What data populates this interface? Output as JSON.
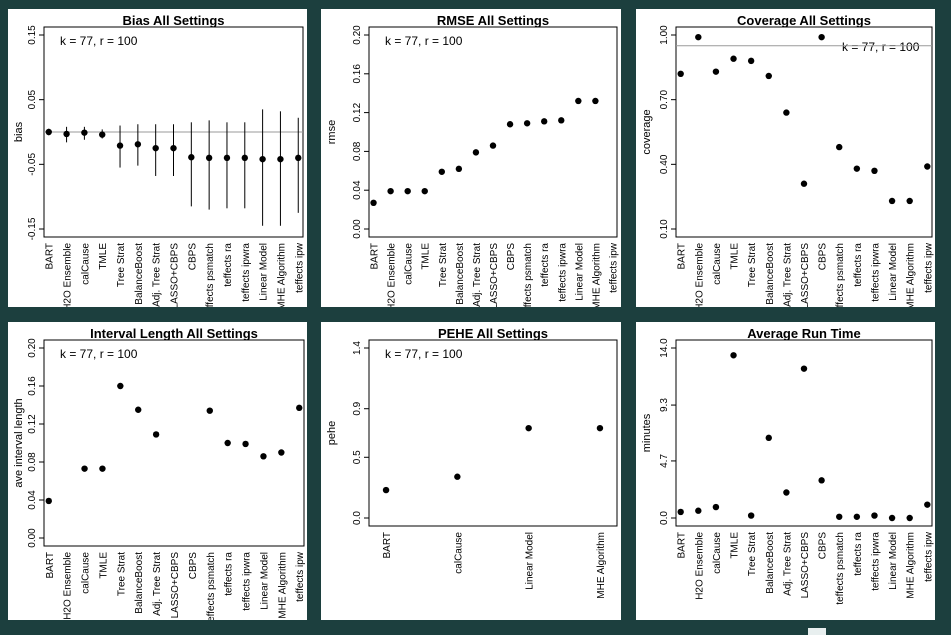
{
  "chart_data": [
    {
      "type": "scatter",
      "title": "Bias All Settings",
      "annotation": "k = 77, r = 100",
      "ylabel": "bias",
      "ylim": [
        -0.15,
        0.15
      ],
      "yticks": [
        0.15,
        0.05,
        -0.05,
        -0.15
      ],
      "ytick_labels": [
        "0.15",
        "0.05",
        "-0.05",
        "-0.15"
      ],
      "hline": 0,
      "categories": [
        "BART",
        "H2O Ensemble",
        "calCause",
        "TMLE",
        "Tree Strat",
        "BalanceBoost",
        "Adj. Tree Strat",
        "LASSO+CBPS",
        "CBPS",
        "teffects psmatch",
        "teffects ra",
        "teffects ipwra",
        "Linear Model",
        "MHE Algorithm",
        "teffects ipw"
      ],
      "values": [
        0.0,
        -0.003,
        -0.001,
        -0.004,
        -0.021,
        -0.019,
        -0.025,
        -0.025,
        -0.039,
        -0.04,
        -0.04,
        -0.04,
        -0.042,
        -0.042,
        -0.04
      ],
      "error_bars": [
        [
          -0.005,
          0.005
        ],
        [
          -0.016,
          0.008
        ],
        [
          -0.012,
          0.008
        ],
        [
          -0.01,
          0.004
        ],
        [
          -0.055,
          0.01
        ],
        [
          -0.052,
          0.012
        ],
        [
          -0.068,
          0.012
        ],
        [
          -0.068,
          0.012
        ],
        [
          -0.115,
          0.015
        ],
        [
          -0.12,
          0.018
        ],
        [
          -0.118,
          0.015
        ],
        [
          -0.118,
          0.015
        ],
        [
          -0.145,
          0.035
        ],
        [
          -0.145,
          0.032
        ],
        [
          -0.125,
          0.022
        ]
      ]
    },
    {
      "type": "scatter",
      "title": "RMSE All Settings",
      "annotation": "k = 77, r = 100",
      "ylabel": "rmse",
      "ylim": [
        0,
        0.2
      ],
      "yticks": [
        0.2,
        0.16,
        0.12,
        0.08,
        0.04,
        0.0
      ],
      "ytick_labels": [
        "0.20",
        "0.16",
        "0.12",
        "0.08",
        "0.04",
        "0.00"
      ],
      "categories": [
        "BART",
        "H2O Ensemble",
        "calCause",
        "TMLE",
        "Tree Strat",
        "BalanceBoost",
        "Adj. Tree Strat",
        "LASSO+CBPS",
        "CBPS",
        "teffects psmatch",
        "teffects ra",
        "teffects ipwra",
        "Linear Model",
        "MHE Algorithm",
        "teffects ipw"
      ],
      "values": [
        0.027,
        0.039,
        0.039,
        0.039,
        0.059,
        0.062,
        0.079,
        0.086,
        0.108,
        0.109,
        0.111,
        0.112,
        0.132,
        0.132,
        null
      ]
    },
    {
      "type": "scatter",
      "title": "Coverage All Settings",
      "annotation": "k = 77, r = 100",
      "ylabel": "coverage",
      "ylim": [
        0.1,
        1.0
      ],
      "yticks": [
        1.0,
        0.7,
        0.4,
        0.1
      ],
      "ytick_labels": [
        "1.00",
        "0.70",
        "0.40",
        "0.10"
      ],
      "hline": 0.95,
      "categories": [
        "BART",
        "H2O Ensemble",
        "calCause",
        "TMLE",
        "Tree Strat",
        "BalanceBoost",
        "Adj. Tree Strat",
        "LASSO+CBPS",
        "CBPS",
        "teffects psmatch",
        "teffects ra",
        "teffects ipwra",
        "Linear Model",
        "MHE Algorithm",
        "teffects ipw"
      ],
      "values": [
        0.82,
        0.99,
        0.83,
        0.89,
        0.88,
        0.81,
        0.64,
        0.31,
        0.99,
        0.48,
        0.38,
        0.37,
        0.23,
        0.23,
        0.39
      ]
    },
    {
      "type": "scatter",
      "title": "Interval Length All Settings",
      "annotation": "k = 77, r = 100",
      "ylabel": "ave interval length",
      "ylim": [
        0,
        0.2
      ],
      "yticks": [
        0.2,
        0.16,
        0.12,
        0.08,
        0.04,
        0.0
      ],
      "ytick_labels": [
        "0.20",
        "0.16",
        "0.12",
        "0.08",
        "0.04",
        "0.00"
      ],
      "categories": [
        "BART",
        "H2O Ensemble",
        "calCause",
        "TMLE",
        "Tree Strat",
        "BalanceBoost",
        "Adj. Tree Strat",
        "LASSO+CBPS",
        "CBPS",
        "teffects psmatch",
        "teffects ra",
        "teffects ipwra",
        "Linear Model",
        "MHE Algorithm",
        "teffects ipw"
      ],
      "values": [
        0.039,
        null,
        0.073,
        0.073,
        0.16,
        0.135,
        0.109,
        null,
        null,
        0.134,
        0.1,
        0.099,
        0.086,
        0.09,
        0.137
      ]
    },
    {
      "type": "scatter",
      "title": "PEHE All Settings",
      "annotation": "k = 77, r = 100",
      "ylabel": "pehe",
      "ylim": [
        0,
        1.4
      ],
      "yticks": [
        1.4,
        0.9,
        0.5,
        0.0
      ],
      "ytick_labels": [
        "1.4",
        "0.9",
        "0.5",
        "0.0"
      ],
      "categories": [
        "BART",
        "calCause",
        "Linear Model",
        "MHE Algorithm"
      ],
      "values": [
        0.23,
        0.34,
        0.74,
        0.74
      ]
    },
    {
      "type": "scatter",
      "title": "Average Run Time",
      "annotation": "",
      "ylabel": "minutes",
      "ylim": [
        0,
        14.0
      ],
      "yticks": [
        14.0,
        9.3,
        4.7,
        0.0
      ],
      "ytick_labels": [
        "14.0",
        "9.3",
        "4.7",
        "0.0"
      ],
      "categories": [
        "BART",
        "H2O Ensemble",
        "calCause",
        "TMLE",
        "Tree Strat",
        "BalanceBoost",
        "Adj. Tree Strat",
        "LASSO+CBPS",
        "CBPS",
        "teffects psmatch",
        "teffects ra",
        "teffects ipwra",
        "Linear Model",
        "MHE Algorithm",
        "teffects ipw"
      ],
      "values": [
        0.5,
        0.6,
        0.9,
        13.4,
        0.2,
        6.6,
        2.1,
        12.3,
        3.1,
        0.1,
        0.1,
        0.2,
        0.0,
        0.0,
        1.1
      ]
    }
  ]
}
